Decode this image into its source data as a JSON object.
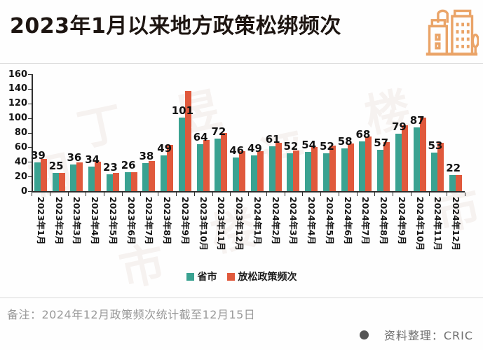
{
  "header": {
    "title": "2023年1月以来地方政策松绑频次",
    "icon": "city-buildings-icon"
  },
  "chart_data": {
    "type": "bar",
    "title": "2023年1月以来地方政策松绑频次",
    "categories": [
      "2023年1月",
      "2023年2月",
      "2023年3月",
      "2023年4月",
      "2023年5月",
      "2023年6月",
      "2023年7月",
      "2023年8月",
      "2023年9月",
      "2023年10月",
      "2023年11月",
      "2023年12月",
      "2024年1月",
      "2024年2月",
      "2024年3月",
      "2024年4月",
      "2024年5月",
      "2024年6月",
      "2024年7月",
      "2024年8月",
      "2024年9月",
      "2024年10月",
      "2024年11月",
      "2024年12月"
    ],
    "series": [
      {
        "name": "省市",
        "color": "#3aa291",
        "values": [
          39,
          25,
          36,
          34,
          23,
          26,
          38,
          49,
          101,
          64,
          72,
          46,
          49,
          61,
          52,
          54,
          52,
          58,
          68,
          57,
          79,
          87,
          53,
          22
        ],
        "data_labels_shown": true
      },
      {
        "name": "放松政策频次",
        "color": "#e0593c",
        "values": [
          44,
          25,
          39,
          40,
          25,
          26,
          41,
          63,
          137,
          70,
          80,
          55,
          55,
          66,
          56,
          60,
          62,
          65,
          75,
          67,
          90,
          101,
          66,
          22
        ],
        "data_labels_shown": false
      }
    ],
    "xlabel": "",
    "ylabel": "",
    "ylim": [
      0,
      160
    ],
    "ytick_step": 20,
    "yticks": [
      0,
      20,
      40,
      60,
      80,
      100,
      120,
      140,
      160
    ],
    "grid": false,
    "legend_position": "bottom",
    "xtick_rotation_deg": 90
  },
  "legend": {
    "items": [
      {
        "label": "省市",
        "color": "#3aa291"
      },
      {
        "label": "放松政策频次",
        "color": "#e0593c"
      }
    ]
  },
  "footer": {
    "note": "备注：2024年12月政策频次统计截至12月15日",
    "bullet": "●",
    "source": "资料整理：CRIC"
  },
  "colors": {
    "bar_teal": "#3aa291",
    "bar_orange": "#e0593c",
    "icon_orange": "#eaa468",
    "axis": "#2e2e2e"
  },
  "watermark": {
    "chars": [
      "丁",
      "祖",
      "昱",
      "评",
      "楼",
      "市",
      "楼",
      "市"
    ]
  }
}
